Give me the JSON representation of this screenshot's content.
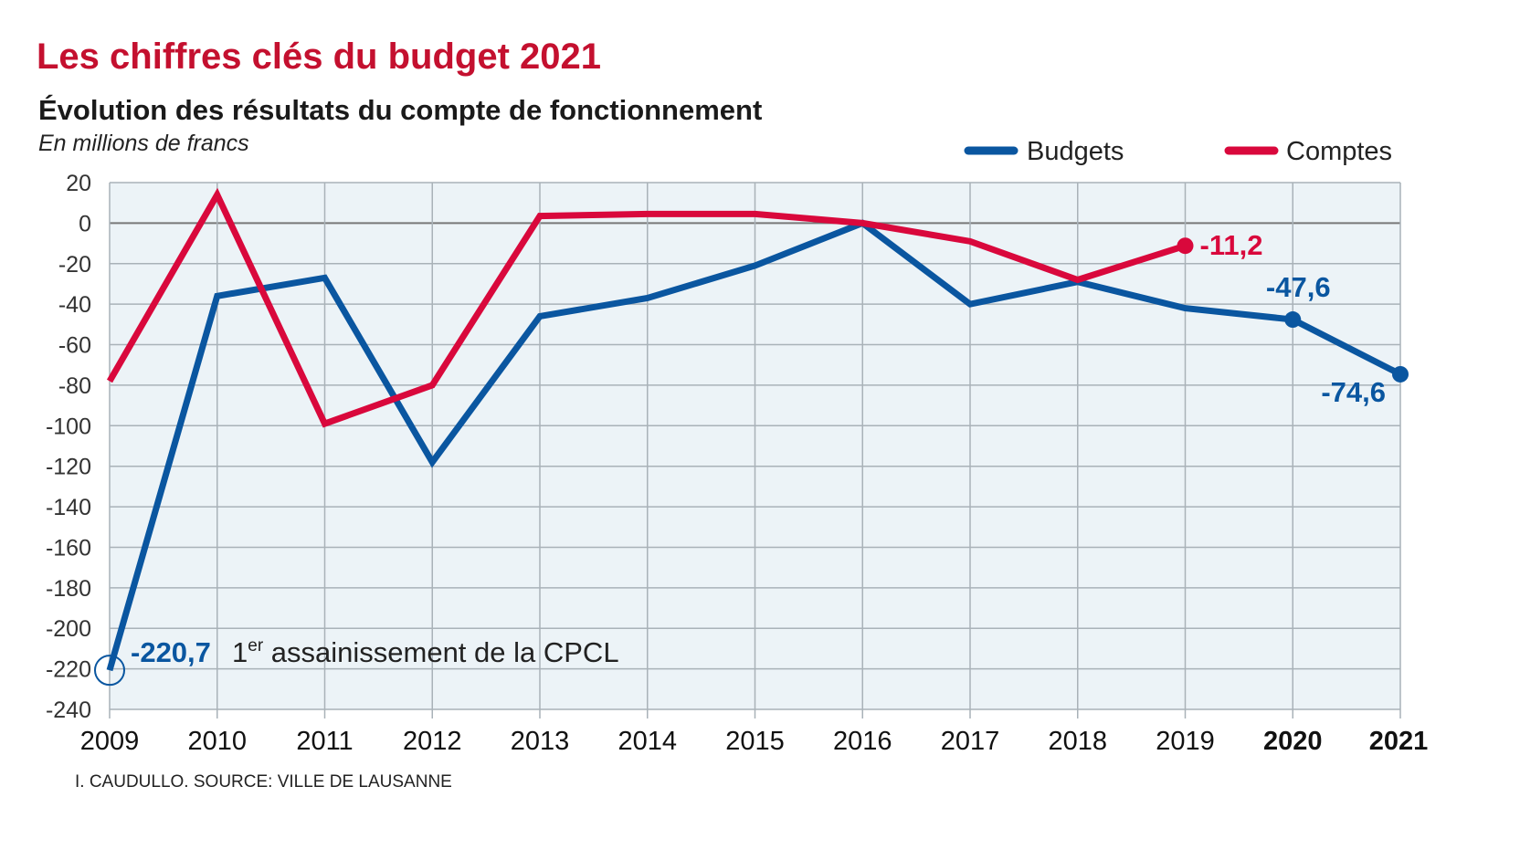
{
  "chart_data": {
    "type": "line",
    "title": "Les chiffres clés du budget 2021",
    "subtitle": "Évolution des résultats du compte de fonctionnement",
    "unit_label": "En millions de francs",
    "x": [
      "2009",
      "2010",
      "2011",
      "2012",
      "2013",
      "2014",
      "2015",
      "2016",
      "2017",
      "2018",
      "2019",
      "2020",
      "2021"
    ],
    "bold_x_ticks": [
      "2020",
      "2021"
    ],
    "ylim": [
      -240,
      20
    ],
    "yticks": [
      20,
      0,
      -20,
      -40,
      -60,
      -80,
      -100,
      -120,
      -140,
      -160,
      -180,
      -200,
      -220,
      -240
    ],
    "grid": true,
    "legend_position": "top-right",
    "series": [
      {
        "name": "Budgets",
        "color": "#0a56a0",
        "values": [
          -220.7,
          -36,
          -27,
          -118,
          -46,
          -37,
          -21,
          0,
          -40,
          -29,
          -42,
          -47.6,
          -74.6
        ]
      },
      {
        "name": "Comptes",
        "color": "#d9083c",
        "values": [
          -78,
          14,
          -99,
          -80,
          3.5,
          4.5,
          4.5,
          0,
          -9,
          -28,
          -11.2,
          null,
          null
        ]
      }
    ],
    "annotations": [
      {
        "series": "Budgets",
        "x": "2009",
        "label": "-220,7",
        "note_main": "1",
        "note_sup": "er",
        "note_rest": " assainissement de la CPCL"
      },
      {
        "series": "Comptes",
        "x": "2019",
        "label": "-11,2"
      },
      {
        "series": "Budgets",
        "x": "2020",
        "label": "-47,6"
      },
      {
        "series": "Budgets",
        "x": "2021",
        "label": "-74,6"
      }
    ],
    "source": "I. CAUDULLO. SOURCE: VILLE DE LAUSANNE"
  }
}
